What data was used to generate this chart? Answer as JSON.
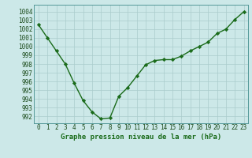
{
  "x": [
    0,
    1,
    2,
    3,
    4,
    5,
    6,
    7,
    8,
    9,
    10,
    11,
    12,
    13,
    14,
    15,
    16,
    17,
    18,
    19,
    20,
    21,
    22,
    23
  ],
  "y": [
    1002.5,
    1001.0,
    999.5,
    998.0,
    995.8,
    993.8,
    992.5,
    991.7,
    991.8,
    994.3,
    995.3,
    996.6,
    997.9,
    998.4,
    998.5,
    998.5,
    998.9,
    999.5,
    1000.0,
    1000.5,
    1001.5,
    1002.0,
    1003.1,
    1004.0
  ],
  "line_color": "#1a6b1a",
  "marker": "D",
  "marker_size": 2.2,
  "line_width": 1.0,
  "bg_color": "#cce8e8",
  "grid_color": "#aacccc",
  "xlabel": "Graphe pression niveau de la mer (hPa)",
  "xlabel_fontsize": 6.5,
  "tick_fontsize": 5.5,
  "ylim": [
    991.2,
    1004.8
  ],
  "yticks": [
    992,
    993,
    994,
    995,
    996,
    997,
    998,
    999,
    1000,
    1001,
    1002,
    1003,
    1004
  ],
  "xticks": [
    0,
    1,
    2,
    3,
    4,
    5,
    6,
    7,
    8,
    9,
    10,
    11,
    12,
    13,
    14,
    15,
    16,
    17,
    18,
    19,
    20,
    21,
    22,
    23
  ]
}
